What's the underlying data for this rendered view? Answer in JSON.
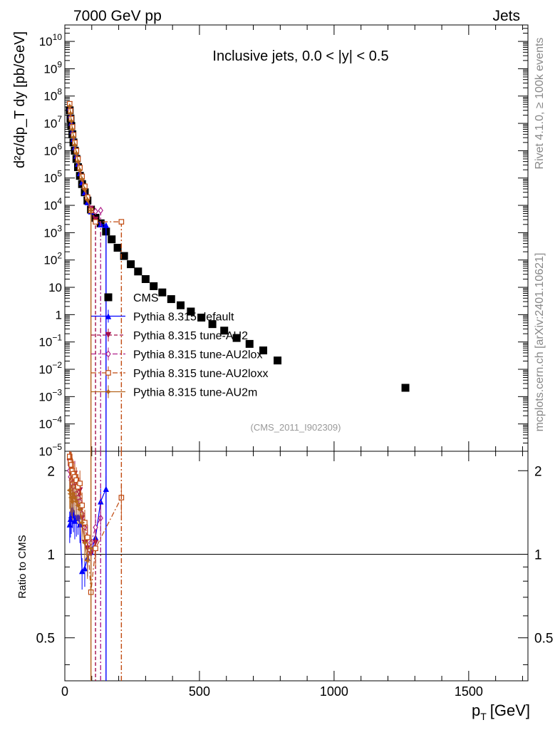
{
  "header": {
    "left": "7000 GeV pp",
    "right": "Jets"
  },
  "side_text": {
    "rivet": "Rivet 4.1.0, ≥ 100k events",
    "mcplots": "mcplots.cern.ch [arXiv:2401.10621]"
  },
  "chart_data": {
    "type": "scatter",
    "title": "Inclusive jets, 0.0 < |y| < 0.5",
    "analysis_id": "(CMS_2011_I902309)",
    "xlabel_main": "p",
    "xlabel_sub": "T",
    "xlabel_unit": "[GeV]",
    "ylabel": "d²σ/dp_T dy [pb/GeV]",
    "ratio_ylabel": "Ratio to CMS",
    "xlim": [
      0,
      1720
    ],
    "ylim": [
      1e-05,
      40000000000
    ],
    "yscale": "log",
    "ratio_ylim": [
      0.35,
      2.35
    ],
    "ratio_yscale": "log",
    "x_ticks": [
      {
        "value": 0,
        "label": "0"
      },
      {
        "value": 500,
        "label": "500"
      },
      {
        "value": 1000,
        "label": "1000"
      },
      {
        "value": 1500,
        "label": "1500"
      }
    ],
    "y_ticks": [
      {
        "value": 10000000000,
        "base": "10",
        "exp": "10"
      },
      {
        "value": 1000000000,
        "base": "10",
        "exp": "9"
      },
      {
        "value": 100000000,
        "base": "10",
        "exp": "8"
      },
      {
        "value": 10000000,
        "base": "10",
        "exp": "7"
      },
      {
        "value": 1000000,
        "base": "10",
        "exp": "6"
      },
      {
        "value": 100000,
        "base": "10",
        "exp": "5"
      },
      {
        "value": 10000,
        "base": "10",
        "exp": "4"
      },
      {
        "value": 1000,
        "base": "10",
        "exp": "3"
      },
      {
        "value": 100,
        "base": "10",
        "exp": "2"
      },
      {
        "value": 10,
        "base": "10",
        "exp": ""
      },
      {
        "value": 1,
        "base": "1",
        "exp": ""
      },
      {
        "value": 0.1,
        "base": "10",
        "exp": "−1"
      },
      {
        "value": 0.01,
        "base": "10",
        "exp": "−2"
      },
      {
        "value": 0.001,
        "base": "10",
        "exp": "−3"
      },
      {
        "value": 0.0001,
        "base": "10",
        "exp": "−4"
      },
      {
        "value": 1e-05,
        "base": "10",
        "exp": "−5"
      }
    ],
    "ratio_ticks": [
      {
        "value": 2,
        "label": "2"
      },
      {
        "value": 1,
        "label": "1"
      },
      {
        "value": 0.5,
        "label": "0.5"
      }
    ],
    "legend": [
      "CMS",
      "Pythia 8.315 default",
      "Pythia 8.315 tune-AU2",
      "Pythia 8.315 tune-AU2lox",
      "Pythia 8.315 tune-AU2loxx",
      "Pythia 8.315 tune-AU2m"
    ],
    "series": [
      {
        "name": "CMS",
        "color": "#000000",
        "marker": "square-filled",
        "x": [
          18,
          21,
          24,
          28,
          32,
          37,
          43,
          49,
          56,
          64,
          74,
          84,
          97,
          114,
          133,
          153,
          174,
          196,
          220,
          245,
          272,
          300,
          330,
          362,
          395,
          430,
          468,
          507,
          548,
          592,
          638,
          686,
          737,
          790,
          1265
        ],
        "y": [
          30000000,
          15000000,
          8000000,
          4000000,
          2000000,
          1000000,
          500000,
          250000,
          120000,
          60000,
          30000,
          15000,
          7000,
          3500,
          2200,
          1100,
          570,
          280,
          140,
          70,
          38,
          20,
          11,
          6.5,
          3.7,
          2.2,
          1.3,
          0.78,
          0.45,
          0.26,
          0.14,
          0.085,
          0.049,
          0.021,
          0.0021
        ]
      },
      {
        "name": "Pythia 8.315 default",
        "color": "#0000ff",
        "marker": "triangle-up-filled",
        "line": "solid",
        "x": [
          18,
          21,
          24,
          28,
          32,
          37,
          43,
          49,
          56,
          64,
          74,
          84,
          97,
          114,
          133,
          153
        ],
        "y": [
          38000000,
          20000000,
          10500000,
          5200000,
          2700000,
          1350000,
          650000,
          330000,
          150000,
          70000,
          30000,
          13000,
          6000,
          3000,
          2000,
          1900
        ],
        "ratio": [
          1.28,
          1.34,
          1.38,
          1.45,
          1.4,
          1.32,
          1.35,
          1.37,
          1.28,
          0.87,
          0.89,
          0.97,
          1.02,
          1.15,
          1.55,
          1.72
        ]
      },
      {
        "name": "Pythia 8.315 tune-AU2",
        "color": "#a50f4a",
        "marker": "triangle-down-filled",
        "line": "dashed",
        "x": [
          18,
          21,
          24,
          28,
          32,
          37,
          43,
          49,
          56,
          64,
          74,
          84,
          97,
          114
        ],
        "y": [
          50000000,
          28000000,
          14500000,
          7000000,
          3600000,
          1900000,
          950000,
          480000,
          230000,
          110000,
          45000,
          18000,
          7500,
          3000
        ],
        "ratio": [
          2.15,
          2.05,
          1.95,
          1.85,
          1.9,
          1.95,
          1.75,
          1.6,
          1.7,
          1.35,
          1.1,
          1.05,
          1.0,
          1.1
        ]
      },
      {
        "name": "Pythia 8.315 tune-AU2lox",
        "color": "#b0208a",
        "marker": "diamond-open",
        "line": "dashdot",
        "x": [
          18,
          21,
          24,
          28,
          32,
          37,
          43,
          49,
          56,
          64,
          74,
          84,
          97,
          114,
          133
        ],
        "y": [
          45000000,
          25000000,
          13000000,
          6500000,
          3300000,
          1700000,
          850000,
          420000,
          200000,
          95000,
          42000,
          17000,
          7000,
          6000,
          6500
        ],
        "ratio": [
          2.0,
          1.9,
          1.85,
          1.8,
          1.75,
          1.7,
          1.65,
          1.6,
          1.55,
          1.4,
          1.25,
          1.15,
          1.1,
          1.25,
          1.35
        ]
      },
      {
        "name": "Pythia 8.315 tune-AU2loxx",
        "color": "#c04a10",
        "marker": "square-open",
        "line": "dashdot",
        "x": [
          18,
          21,
          24,
          28,
          32,
          37,
          43,
          49,
          56,
          64,
          74,
          84,
          97,
          114,
          210
        ],
        "y": [
          52000000,
          29000000,
          15000000,
          7500000,
          3800000,
          2000000,
          1000000,
          500000,
          240000,
          115000,
          50000,
          20000,
          6500,
          2500,
          2500
        ],
        "ratio": [
          2.25,
          2.15,
          2.1,
          2.0,
          1.95,
          1.9,
          1.85,
          1.75,
          1.8,
          1.5,
          1.3,
          1.15,
          0.73,
          1.05,
          1.6
        ]
      },
      {
        "name": "Pythia 8.315 tune-AU2m",
        "color": "#b5651d",
        "marker": "star-filled",
        "line": "solid",
        "x": [
          18,
          21,
          24,
          28,
          32,
          37,
          43,
          49,
          56,
          64,
          74,
          84,
          97
        ],
        "y": [
          42000000,
          23000000,
          12000000,
          6000000,
          3100000,
          1600000,
          800000,
          400000,
          190000,
          90000,
          38000,
          16000,
          6500
        ],
        "ratio": [
          1.7,
          1.65,
          1.6,
          1.55,
          1.65,
          1.6,
          1.55,
          1.5,
          1.45,
          1.3,
          1.1,
          0.95,
          1.05
        ]
      }
    ]
  }
}
